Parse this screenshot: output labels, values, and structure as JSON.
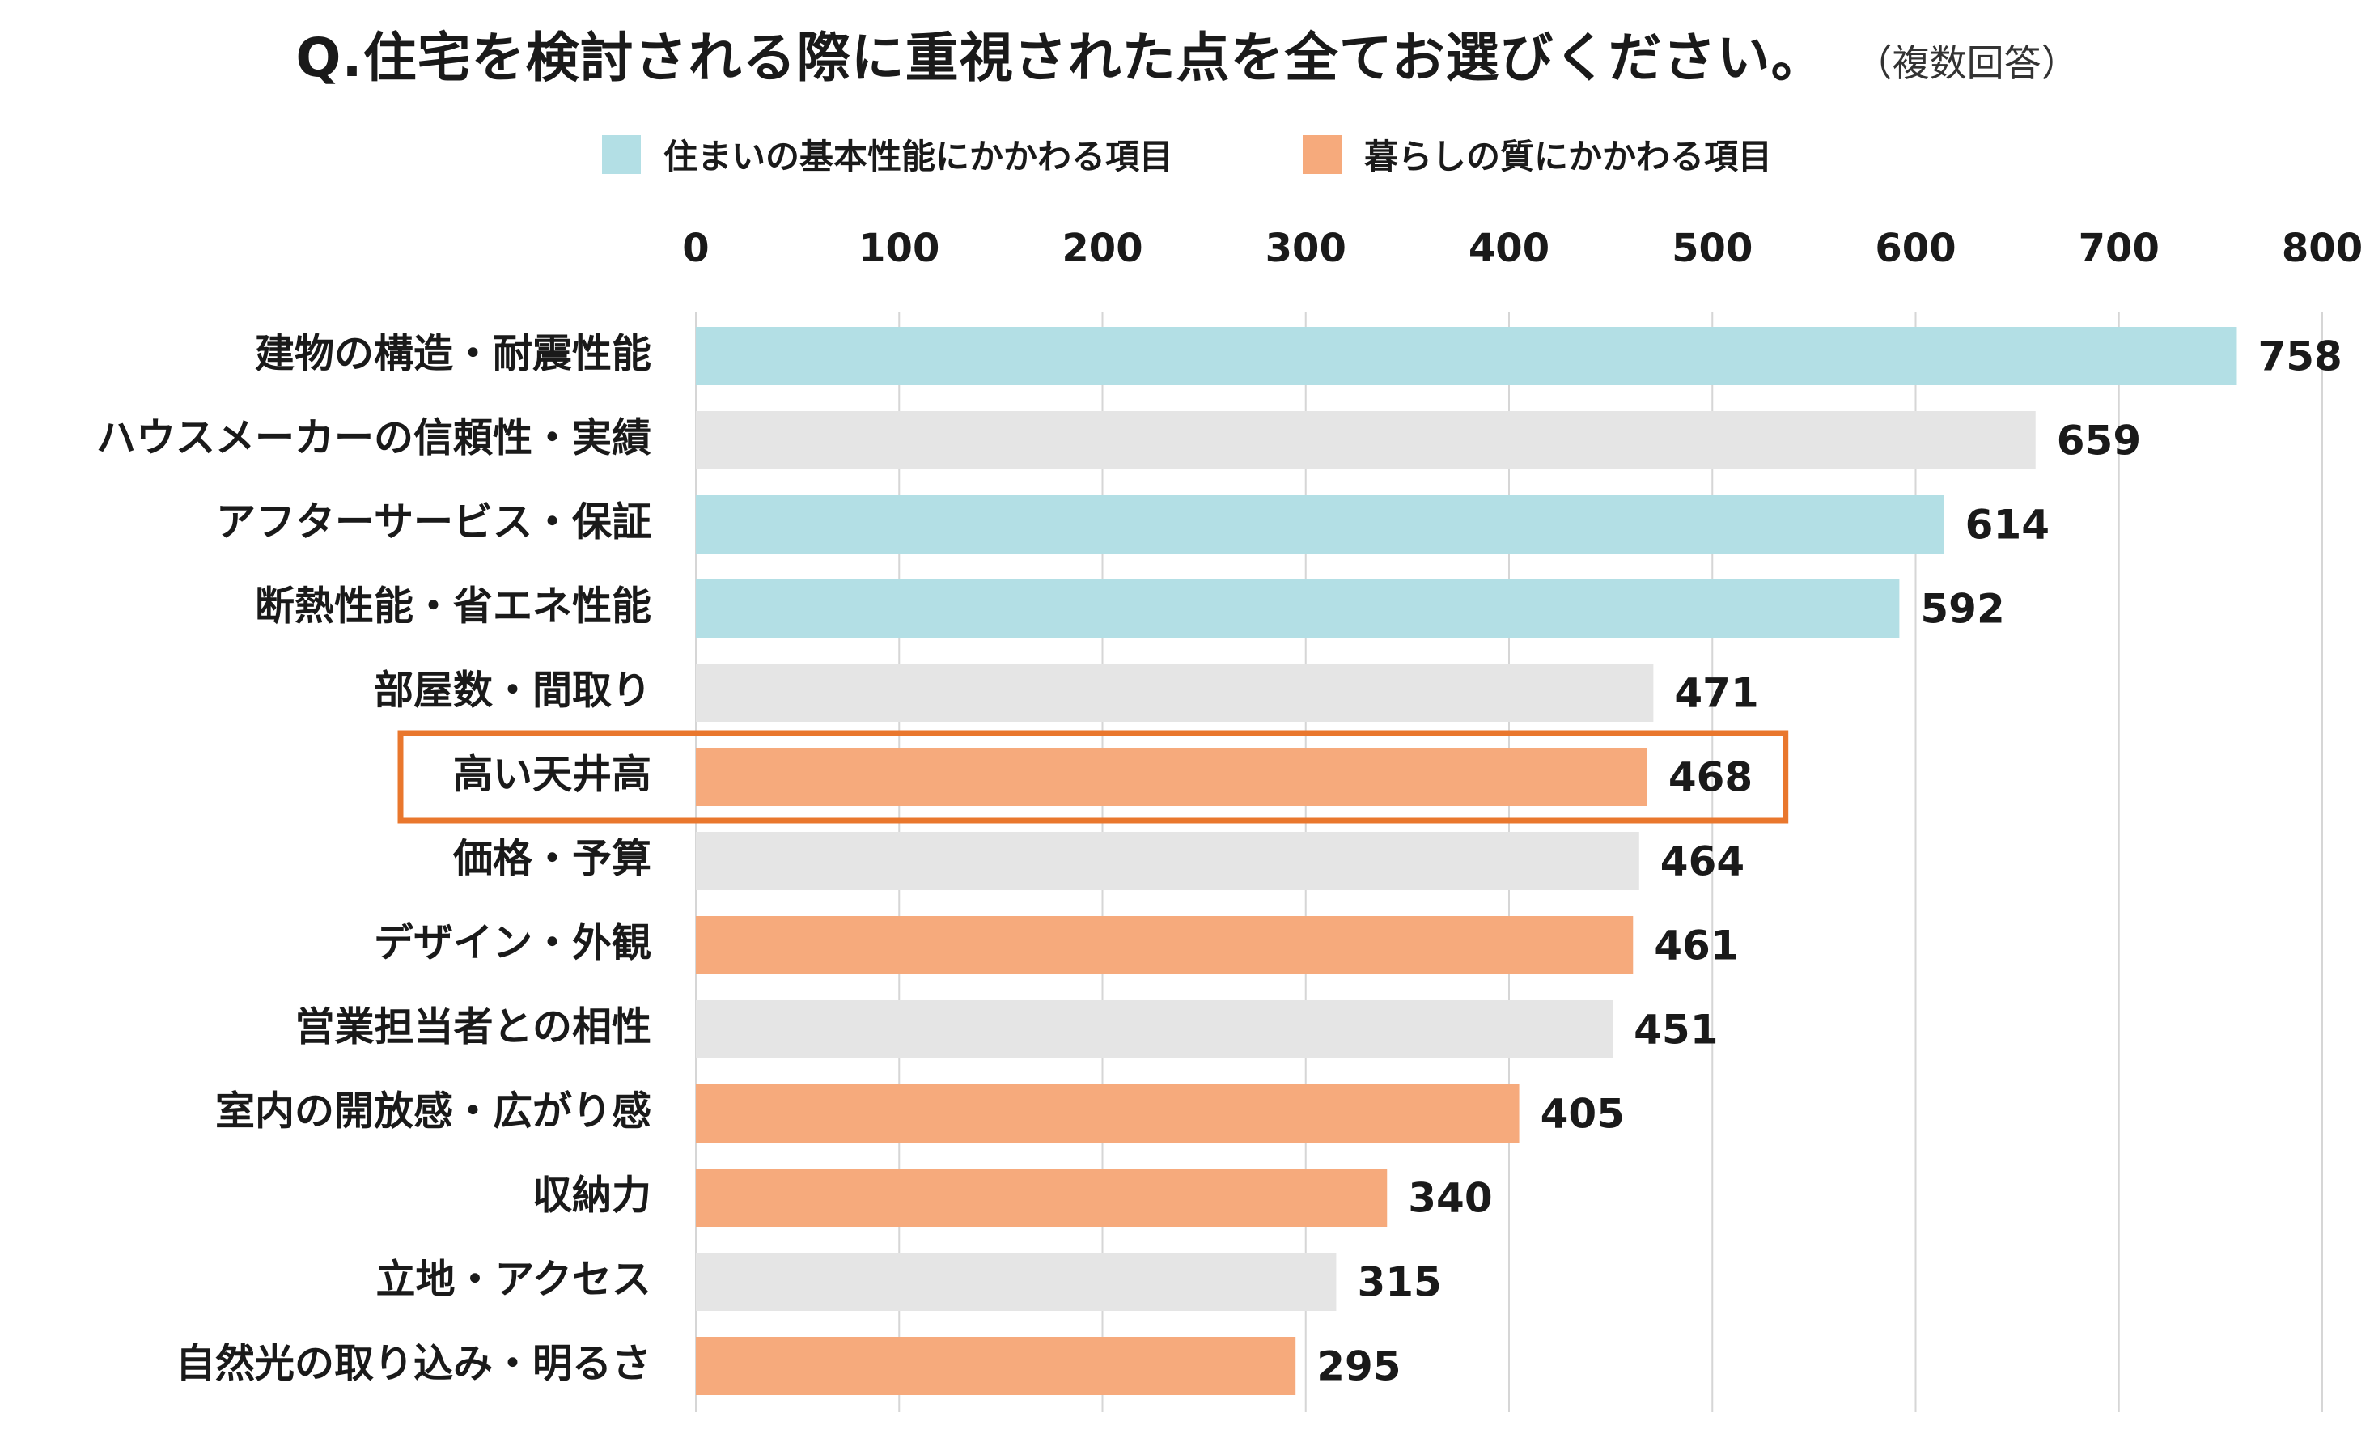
{
  "chart_data": {
    "type": "bar",
    "orientation": "horizontal",
    "title": "Q.住宅を検討される際に重視された点を全てお選びください。",
    "subtitle": "（複数回答）",
    "xlim": [
      0,
      800
    ],
    "ticks": [
      0,
      100,
      200,
      300,
      400,
      500,
      600,
      700,
      800
    ],
    "grid": true,
    "legend_placement": "top",
    "legend": [
      {
        "label": "住まいの基本性能にかかわる項目",
        "color": "#b3dfe5"
      },
      {
        "label": "暮らしの質にかかわる項目",
        "color": "#f6aa7c"
      }
    ],
    "other_color": "#e5e5e5",
    "highlight_color": "#e9772d",
    "categories": [
      "建物の構造・耐震性能",
      "ハウスメーカーの信頼性・実績",
      "アフターサービス・保証",
      "断熱性能・省エネ性能",
      "部屋数・間取り",
      "高い天井高",
      "価格・予算",
      "デザイン・外観",
      "営業担当者との相性",
      "室内の開放感・広がり感",
      "収納力",
      "立地・アクセス",
      "自然光の取り込み・明るさ"
    ],
    "values": [
      758,
      659,
      614,
      592,
      471,
      468,
      464,
      461,
      451,
      405,
      340,
      315,
      295
    ],
    "groups": [
      "basic",
      "other",
      "basic",
      "basic",
      "other",
      "living",
      "other",
      "living",
      "other",
      "living",
      "living",
      "other",
      "living"
    ],
    "highlighted": "高い天井高"
  }
}
